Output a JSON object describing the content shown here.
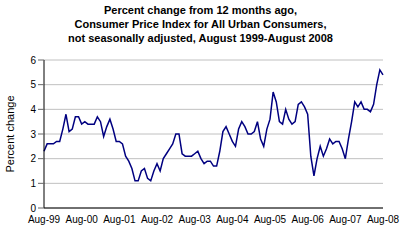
{
  "chart_data": {
    "type": "line",
    "title": [
      "Percent change from 12 months ago,",
      "Consumer Price Index for All Urban Consumers,",
      "not seasonally adjusted, August 1999-August 2008"
    ],
    "y_label": "Percent change",
    "categories": [
      "Aug-99",
      null,
      null,
      null,
      null,
      null,
      null,
      null,
      null,
      null,
      null,
      null,
      "Aug-00",
      null,
      null,
      null,
      null,
      null,
      null,
      null,
      null,
      null,
      null,
      null,
      "Aug-01",
      null,
      null,
      null,
      null,
      null,
      null,
      null,
      null,
      null,
      null,
      null,
      "Aug-02",
      null,
      null,
      null,
      null,
      null,
      null,
      null,
      null,
      null,
      null,
      null,
      "Aug-03",
      null,
      null,
      null,
      null,
      null,
      null,
      null,
      null,
      null,
      null,
      null,
      "Aug-04",
      null,
      null,
      null,
      null,
      null,
      null,
      null,
      null,
      null,
      null,
      null,
      "Aug-05",
      null,
      null,
      null,
      null,
      null,
      null,
      null,
      null,
      null,
      null,
      null,
      "Aug-06",
      null,
      null,
      null,
      null,
      null,
      null,
      null,
      null,
      null,
      null,
      null,
      "Aug-07",
      null,
      null,
      null,
      null,
      null,
      null,
      null,
      null,
      null,
      null,
      null,
      "Aug-08"
    ],
    "values": [
      2.3,
      2.6,
      2.6,
      2.6,
      2.7,
      2.7,
      3.2,
      3.8,
      3.1,
      3.2,
      3.7,
      3.7,
      3.4,
      3.5,
      3.4,
      3.4,
      3.4,
      3.7,
      3.5,
      2.9,
      3.3,
      3.6,
      3.2,
      2.7,
      2.7,
      2.6,
      2.1,
      1.9,
      1.6,
      1.1,
      1.1,
      1.5,
      1.6,
      1.2,
      1.1,
      1.5,
      1.8,
      1.5,
      2.0,
      2.2,
      2.4,
      2.6,
      3.0,
      3.0,
      2.2,
      2.1,
      2.1,
      2.1,
      2.2,
      2.3,
      2.0,
      1.8,
      1.9,
      1.9,
      1.7,
      1.7,
      2.3,
      3.1,
      3.3,
      3.0,
      2.7,
      2.5,
      3.2,
      3.5,
      3.3,
      3.0,
      3.0,
      3.1,
      3.5,
      2.8,
      2.5,
      3.2,
      3.6,
      4.7,
      4.3,
      3.5,
      3.4,
      4.0,
      3.6,
      3.4,
      3.5,
      4.2,
      4.3,
      4.1,
      3.8,
      2.1,
      1.3,
      2.0,
      2.5,
      2.1,
      2.4,
      2.8,
      2.6,
      2.7,
      2.7,
      2.4,
      2.0,
      2.8,
      3.5,
      4.3,
      4.1,
      4.3,
      4.0,
      4.0,
      3.9,
      4.2,
      5.0,
      5.6,
      5.4
    ],
    "color": "#000080",
    "ylim": [
      0,
      6
    ],
    "yticks": [
      0,
      1,
      2,
      3,
      4,
      5,
      6
    ],
    "grid": true
  }
}
